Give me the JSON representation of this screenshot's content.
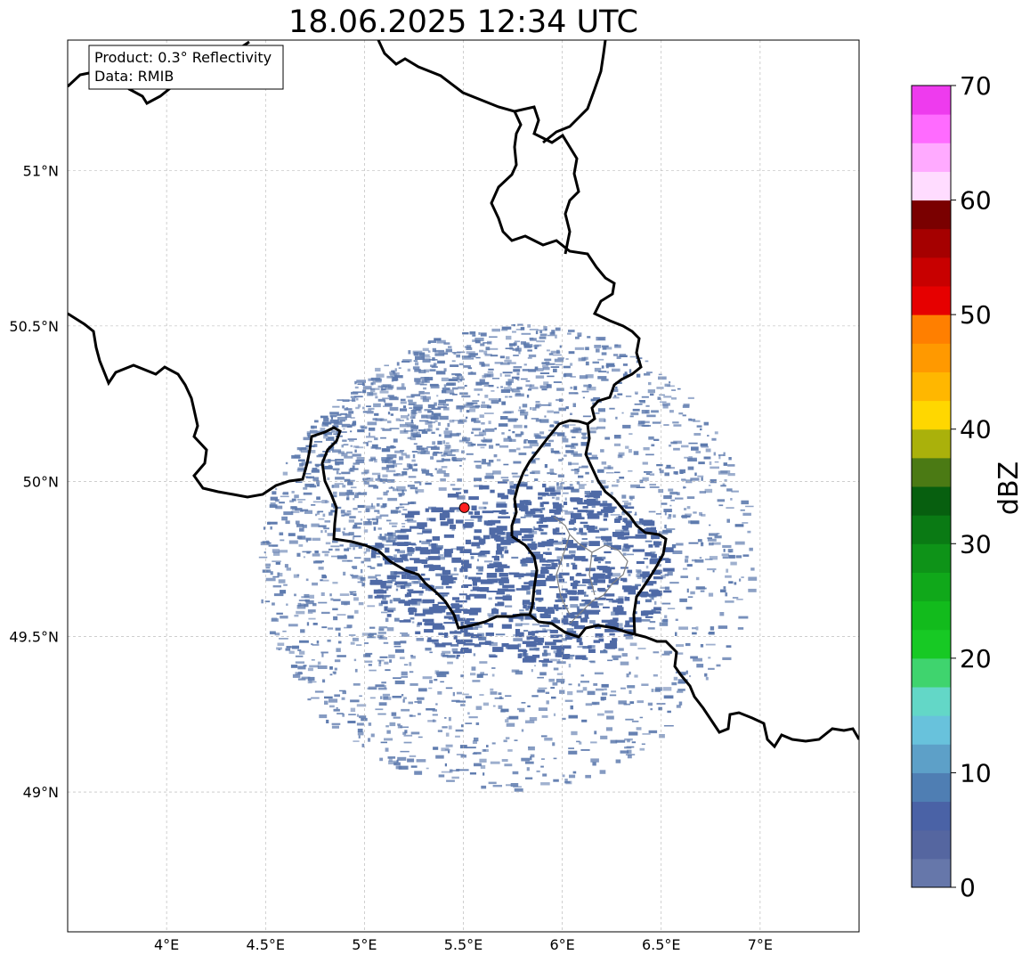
{
  "title": "18.06.2025 12:34 UTC",
  "info": {
    "product": "Product: 0.3° Reflectivity",
    "source": "Data: RMIB"
  },
  "map": {
    "extent": {
      "lon": [
        3.5,
        7.5
      ],
      "lat": [
        48.55,
        51.42
      ]
    },
    "lon_ticks": [
      {
        "value": 4.0,
        "label": "4°E"
      },
      {
        "value": 4.5,
        "label": "4.5°E"
      },
      {
        "value": 5.0,
        "label": "5°E"
      },
      {
        "value": 5.5,
        "label": "5.5°E"
      },
      {
        "value": 6.0,
        "label": "6°E"
      },
      {
        "value": 6.5,
        "label": "6.5°E"
      },
      {
        "value": 7.0,
        "label": "7°E"
      }
    ],
    "lat_ticks": [
      {
        "value": 49.0,
        "label": "49°N"
      },
      {
        "value": 49.5,
        "label": "49.5°N"
      },
      {
        "value": 50.0,
        "label": "50°N"
      },
      {
        "value": 50.5,
        "label": "50.5°N"
      },
      {
        "value": 51.0,
        "label": "51°N"
      }
    ],
    "radar_site": {
      "lon": 5.505,
      "lat": 49.915,
      "color": "#ff2020"
    },
    "echo_color": "#5c79ad",
    "border_color": "#000000",
    "grid_color": "#b0b0b0"
  },
  "colorbar": {
    "label": "dBZ",
    "min": 0,
    "max": 70,
    "tick_values": [
      0,
      10,
      20,
      30,
      40,
      50,
      60,
      70
    ],
    "tick_labels": [
      "0",
      "10",
      "20",
      "30",
      "40",
      "50",
      "60",
      "70"
    ],
    "colors": [
      "#6677aa",
      "#5566a0",
      "#4a62a6",
      "#4f7eb3",
      "#5da0c8",
      "#68c2dc",
      "#63d7c7",
      "#3fd46e",
      "#17c924",
      "#12bb1c",
      "#10a81a",
      "#0e9318",
      "#0a7a14",
      "#075f0f",
      "#4b7a14",
      "#aab10b",
      "#ffd700",
      "#ffb700",
      "#ff9900",
      "#ff7f00",
      "#e60000",
      "#c80000",
      "#a50000",
      "#7a0000",
      "#ffdcff",
      "#ffaaff",
      "#ff6bff",
      "#ee3bee"
    ]
  }
}
